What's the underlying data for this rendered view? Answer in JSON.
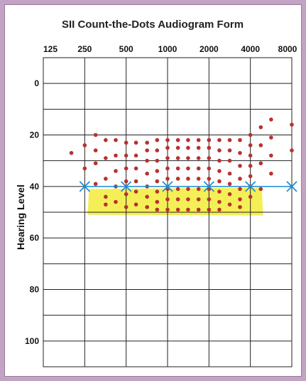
{
  "chart_data": {
    "type": "scatter",
    "title": "SII Count-the-Dots Audiogram Form",
    "xlabel": "",
    "ylabel": "Hearing Level",
    "x_scale": "log2",
    "x_ticks": [
      "125",
      "250",
      "500",
      "1000",
      "2000",
      "4000",
      "8000"
    ],
    "x_tick_values": [
      125,
      250,
      500,
      1000,
      2000,
      4000,
      8000
    ],
    "y_ticks": [
      "0",
      "20",
      "40",
      "60",
      "80",
      "100"
    ],
    "y_tick_values": [
      0,
      20,
      40,
      60,
      80,
      100
    ],
    "ylim": [
      -10,
      110
    ],
    "y_inverted": true,
    "grid": true,
    "colors": {
      "dots": "#b8312f",
      "threshold": "#1f8fd6",
      "highlight": "#f2ec3a"
    },
    "series": [
      {
        "kind": "dots",
        "points": [
          [
            200,
            27
          ],
          [
            250,
            24
          ],
          [
            250,
            33
          ],
          [
            300,
            20
          ],
          [
            300,
            26
          ],
          [
            300,
            31
          ],
          [
            300,
            39
          ],
          [
            355,
            22
          ],
          [
            355,
            29
          ],
          [
            355,
            37
          ],
          [
            355,
            44
          ],
          [
            355,
            47
          ],
          [
            420,
            22
          ],
          [
            420,
            28
          ],
          [
            420,
            34
          ],
          [
            420,
            40
          ],
          [
            420,
            46
          ],
          [
            500,
            23
          ],
          [
            500,
            28
          ],
          [
            500,
            33
          ],
          [
            500,
            38
          ],
          [
            500,
            43
          ],
          [
            500,
            48
          ],
          [
            590,
            23
          ],
          [
            590,
            28
          ],
          [
            590,
            33
          ],
          [
            590,
            38
          ],
          [
            590,
            42
          ],
          [
            590,
            47
          ],
          [
            710,
            23
          ],
          [
            710,
            26
          ],
          [
            710,
            30
          ],
          [
            710,
            35
          ],
          [
            710,
            40
          ],
          [
            710,
            44
          ],
          [
            710,
            48
          ],
          [
            840,
            22
          ],
          [
            840,
            26
          ],
          [
            840,
            30
          ],
          [
            840,
            34
          ],
          [
            840,
            38
          ],
          [
            840,
            42
          ],
          [
            840,
            46
          ],
          [
            840,
            49
          ],
          [
            1000,
            22
          ],
          [
            1000,
            25
          ],
          [
            1000,
            29
          ],
          [
            1000,
            33
          ],
          [
            1000,
            37
          ],
          [
            1000,
            41
          ],
          [
            1000,
            45
          ],
          [
            1000,
            49
          ],
          [
            1190,
            22
          ],
          [
            1190,
            25
          ],
          [
            1190,
            29
          ],
          [
            1190,
            33
          ],
          [
            1190,
            37
          ],
          [
            1190,
            41
          ],
          [
            1190,
            45
          ],
          [
            1190,
            49
          ],
          [
            1410,
            22
          ],
          [
            1410,
            25
          ],
          [
            1410,
            29
          ],
          [
            1410,
            33
          ],
          [
            1410,
            37
          ],
          [
            1410,
            41
          ],
          [
            1410,
            45
          ],
          [
            1410,
            49
          ],
          [
            1680,
            22
          ],
          [
            1680,
            25
          ],
          [
            1680,
            29
          ],
          [
            1680,
            33
          ],
          [
            1680,
            37
          ],
          [
            1680,
            41
          ],
          [
            1680,
            45
          ],
          [
            1680,
            49
          ],
          [
            2000,
            22
          ],
          [
            2000,
            25
          ],
          [
            2000,
            29
          ],
          [
            2000,
            33
          ],
          [
            2000,
            37
          ],
          [
            2000,
            41
          ],
          [
            2000,
            45
          ],
          [
            2000,
            49
          ],
          [
            2380,
            22
          ],
          [
            2380,
            26
          ],
          [
            2380,
            30
          ],
          [
            2380,
            34
          ],
          [
            2380,
            38
          ],
          [
            2380,
            42
          ],
          [
            2380,
            46
          ],
          [
            2380,
            49
          ],
          [
            2830,
            22
          ],
          [
            2830,
            26
          ],
          [
            2830,
            30
          ],
          [
            2830,
            35
          ],
          [
            2830,
            39
          ],
          [
            2830,
            43
          ],
          [
            2830,
            47
          ],
          [
            3360,
            22
          ],
          [
            3360,
            27
          ],
          [
            3360,
            32
          ],
          [
            3360,
            37
          ],
          [
            3360,
            41
          ],
          [
            3360,
            45
          ],
          [
            3360,
            48
          ],
          [
            4000,
            20
          ],
          [
            4000,
            24
          ],
          [
            4000,
            28
          ],
          [
            4000,
            32
          ],
          [
            4000,
            36
          ],
          [
            4000,
            40
          ],
          [
            4000,
            44
          ],
          [
            4760,
            17
          ],
          [
            4760,
            24
          ],
          [
            4760,
            31
          ],
          [
            4760,
            41
          ],
          [
            5660,
            14
          ],
          [
            5660,
            21
          ],
          [
            5660,
            28
          ],
          [
            5660,
            35
          ],
          [
            8000,
            16
          ],
          [
            8000,
            26
          ]
        ]
      },
      {
        "kind": "threshold",
        "points": [
          [
            250,
            40
          ],
          [
            500,
            40
          ],
          [
            1000,
            40
          ],
          [
            2000,
            40
          ],
          [
            4000,
            40
          ],
          [
            8000,
            40
          ]
        ]
      }
    ],
    "highlight": {
      "x_range": [
        250,
        4000
      ],
      "y_range": [
        41,
        51
      ]
    }
  }
}
